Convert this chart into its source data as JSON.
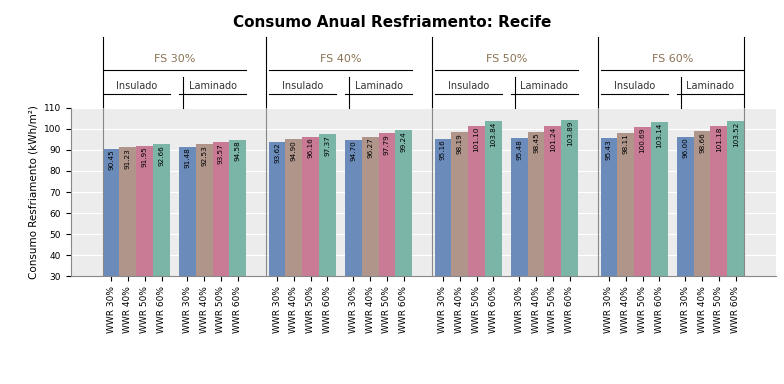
{
  "title": "Consumo Anual Resfriamento: Recife",
  "ylabel": "Consumo Resfriamento (kWh/m²)",
  "ylim": [
    30,
    110
  ],
  "yticks": [
    30,
    40,
    50,
    60,
    70,
    80,
    90,
    100,
    110
  ],
  "groups": [
    {
      "fs_label": "FS 30%",
      "subgroups": [
        {
          "label": "Insulado",
          "values": [
            90.45,
            91.23,
            91.95,
            92.66
          ]
        },
        {
          "label": "Laminado",
          "values": [
            91.48,
            92.53,
            93.57,
            94.58
          ]
        }
      ]
    },
    {
      "fs_label": "FS 40%",
      "subgroups": [
        {
          "label": "Insulado",
          "values": [
            93.62,
            94.9,
            96.16,
            97.37
          ]
        },
        {
          "label": "Laminado",
          "values": [
            94.7,
            96.27,
            97.79,
            99.24
          ]
        }
      ]
    },
    {
      "fs_label": "FS 50%",
      "subgroups": [
        {
          "label": "Insulado",
          "values": [
            95.16,
            98.19,
            101.1,
            103.84
          ]
        },
        {
          "label": "Laminado",
          "values": [
            95.48,
            98.45,
            101.24,
            103.89
          ]
        }
      ]
    },
    {
      "fs_label": "FS 60%",
      "subgroups": [
        {
          "label": "Insulado",
          "values": [
            95.43,
            98.11,
            100.69,
            103.14
          ]
        },
        {
          "label": "Laminado",
          "values": [
            96.0,
            98.66,
            101.18,
            103.52
          ]
        }
      ]
    }
  ],
  "wwr_labels": [
    "WWR 30%",
    "WWR 40%",
    "WWR 50%",
    "WWR 60%"
  ],
  "bar_colors": [
    "#6b8cba",
    "#b0958a",
    "#c97b96",
    "#7ab5a8"
  ],
  "fs_label_color": "#8B7355",
  "sublabel_color": "#333333",
  "background_color": "#ffffff",
  "plot_bg_color": "#ececec",
  "title_fontsize": 11,
  "ylabel_fontsize": 7.5,
  "tick_fontsize": 6.5,
  "bar_label_fontsize": 5.2,
  "fs_label_fontsize": 8,
  "sub_label_fontsize": 7
}
